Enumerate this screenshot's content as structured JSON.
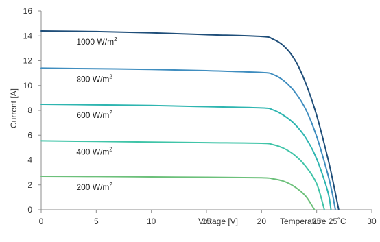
{
  "chart_data": {
    "type": "line",
    "xlabel": "Voltage [V]",
    "ylabel": "Current [A]",
    "xlim": [
      0,
      30
    ],
    "ylim": [
      0,
      16
    ],
    "x_ticks": [
      "0",
      "5",
      "10",
      "15",
      "20",
      "25",
      "30"
    ],
    "y_ticks": [
      "0",
      "2",
      "4",
      "6",
      "8",
      "10",
      "12",
      "14",
      "16"
    ],
    "grid": false,
    "legend": "none",
    "annotation": "Temperature 25˚C",
    "series": [
      {
        "label": "1000 W/m²",
        "label_main": "1000 W/m",
        "label_sup": "2",
        "color": "#1f4e79",
        "x": [
          0,
          5,
          10,
          15,
          20,
          21,
          22,
          23,
          24,
          25,
          26,
          26.5,
          27
        ],
        "y": [
          14.4,
          14.35,
          14.25,
          14.1,
          13.95,
          13.75,
          13.2,
          12.1,
          10.2,
          7.6,
          4.2,
          2.2,
          0
        ]
      },
      {
        "label": "800 W/m²",
        "label_main": "800 W/m",
        "label_sup": "2",
        "color": "#3f8dbf",
        "x": [
          0,
          5,
          10,
          15,
          20,
          21,
          22,
          23,
          24,
          25,
          26,
          26.4,
          26.7
        ],
        "y": [
          11.4,
          11.35,
          11.3,
          11.2,
          11.05,
          10.9,
          10.4,
          9.5,
          8.1,
          5.9,
          2.9,
          1.4,
          0
        ]
      },
      {
        "label": "600 W/m²",
        "label_main": "600 W/m",
        "label_sup": "2",
        "color": "#2eb5b0",
        "x": [
          0,
          5,
          10,
          15,
          20,
          21,
          22,
          23,
          24,
          25,
          26,
          26.3
        ],
        "y": [
          8.5,
          8.45,
          8.4,
          8.3,
          8.2,
          8.05,
          7.6,
          6.9,
          5.8,
          4.1,
          1.5,
          0
        ]
      },
      {
        "label": "400 W/m²",
        "label_main": "400 W/m",
        "label_sup": "2",
        "color": "#40c4a8",
        "x": [
          0,
          5,
          10,
          15,
          20,
          21,
          22,
          23,
          24,
          25,
          25.7
        ],
        "y": [
          5.55,
          5.5,
          5.45,
          5.4,
          5.35,
          5.25,
          4.95,
          4.4,
          3.5,
          2.1,
          0
        ]
      },
      {
        "label": "200 W/m²",
        "label_main": "200 W/m",
        "label_sup": "2",
        "color": "#6cc07a",
        "x": [
          0,
          5,
          10,
          15,
          20,
          21,
          22,
          23,
          24,
          24.8
        ],
        "y": [
          2.7,
          2.68,
          2.65,
          2.62,
          2.58,
          2.5,
          2.3,
          1.85,
          1.1,
          0
        ]
      }
    ]
  }
}
